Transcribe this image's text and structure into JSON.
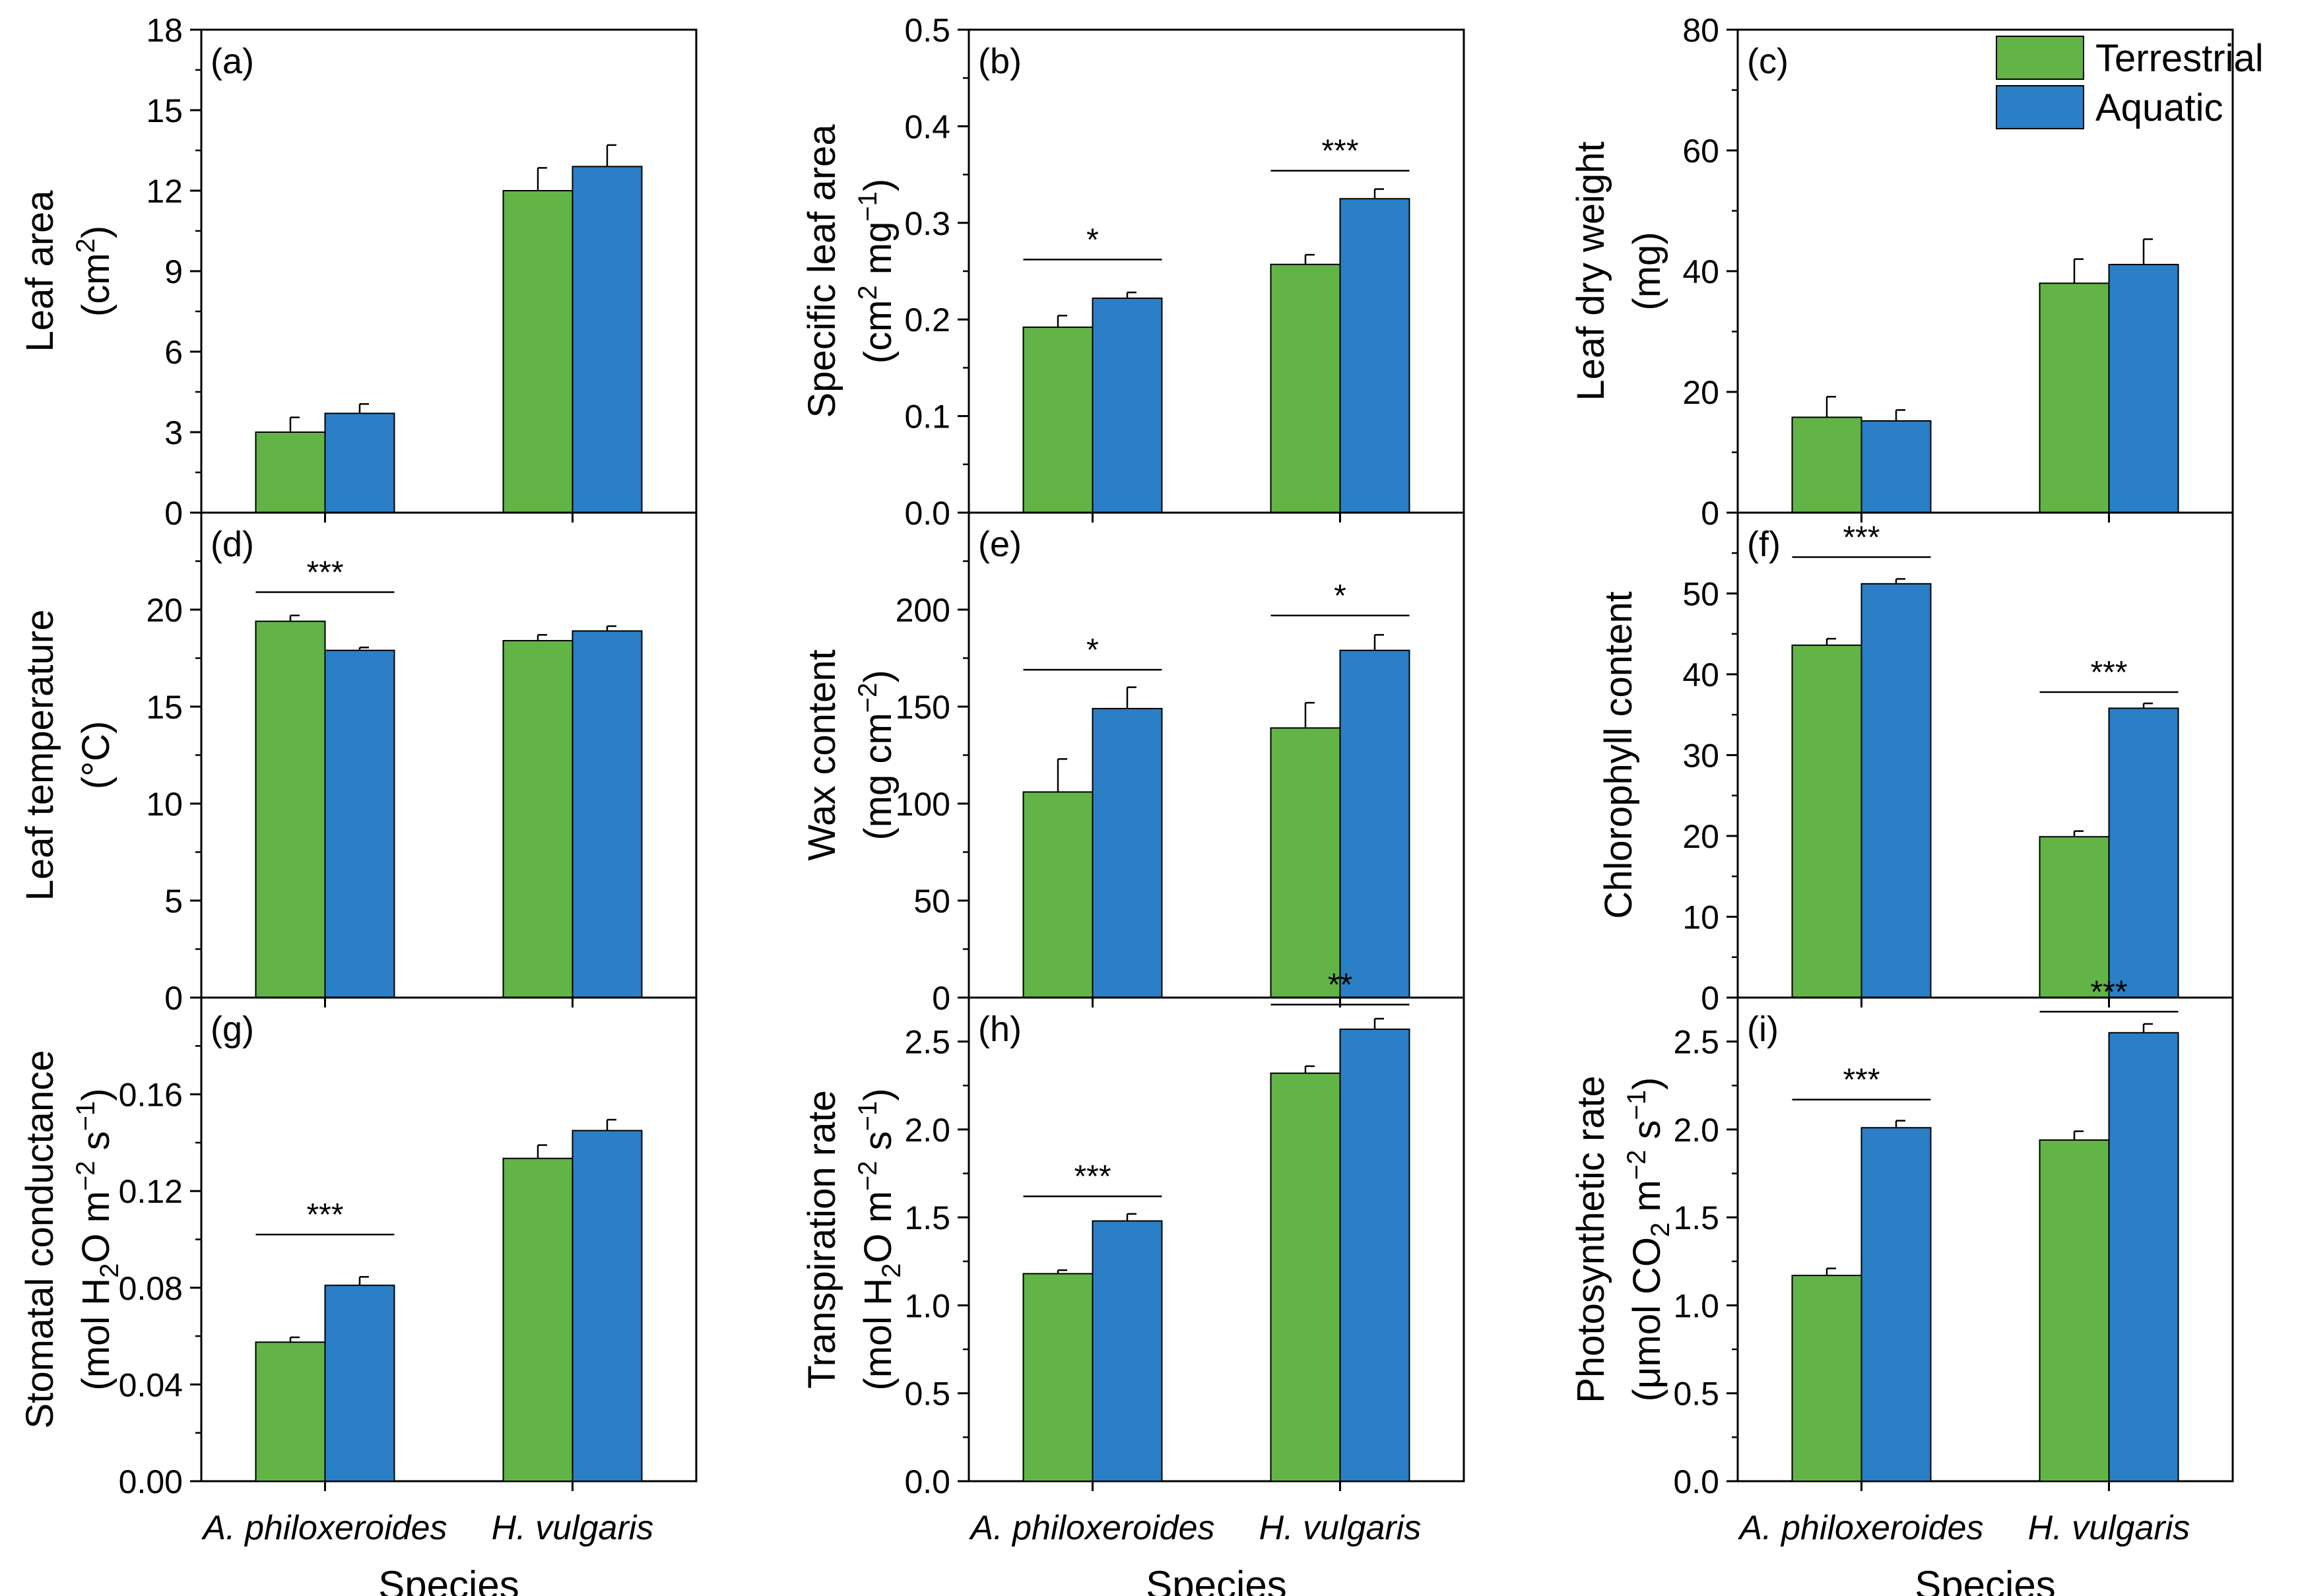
{
  "colors": {
    "terrestrial": "#62b446",
    "aquatic": "#2a7fc6"
  },
  "legend": {
    "terrestrial": "Terrestrial",
    "aquatic": "Aquatic"
  },
  "x_axis": {
    "categories": [
      "A. philoxeroides",
      "H. vulgaris"
    ],
    "label": "Species"
  },
  "chart_data": [
    {
      "id": "a",
      "type": "bar",
      "panel_label": "(a)",
      "ylabel": [
        "Leaf area",
        "(cm<sup>2</sup>)"
      ],
      "ylim": [
        0,
        18
      ],
      "ticks": [
        0,
        3,
        6,
        9,
        12,
        15,
        18
      ],
      "tick_labels": [
        "0",
        "3",
        "6",
        "9",
        "12",
        "15",
        "18"
      ],
      "minor_step": 1.5,
      "categories": [
        "A. philoxeroides",
        "H. vulgaris"
      ],
      "series": [
        {
          "name": "Terrestrial",
          "values": [
            3.0,
            12.0
          ],
          "errors": [
            0.55,
            0.85
          ]
        },
        {
          "name": "Aquatic",
          "values": [
            3.7,
            12.9
          ],
          "errors": [
            0.35,
            0.8
          ]
        }
      ],
      "significance": [
        null,
        null
      ]
    },
    {
      "id": "b",
      "type": "bar",
      "panel_label": "(b)",
      "ylabel": [
        "Specific leaf area",
        "(cm<sup>2</sup> mg<sup>−1</sup>)"
      ],
      "ylim": [
        0,
        0.5
      ],
      "ticks": [
        0,
        0.1,
        0.2,
        0.3,
        0.4,
        0.5
      ],
      "tick_labels": [
        "0.0",
        "0.1",
        "0.2",
        "0.3",
        "0.4",
        "0.5"
      ],
      "minor_step": 0.05,
      "categories": [
        "A. philoxeroides",
        "H. vulgaris"
      ],
      "series": [
        {
          "name": "Terrestrial",
          "values": [
            0.192,
            0.257
          ],
          "errors": [
            0.012,
            0.01
          ]
        },
        {
          "name": "Aquatic",
          "values": [
            0.222,
            0.325
          ],
          "errors": [
            0.006,
            0.01
          ]
        }
      ],
      "significance": [
        {
          "text": "*",
          "y": 0.262
        },
        {
          "text": "***",
          "y": 0.354
        }
      ]
    },
    {
      "id": "c",
      "type": "bar",
      "panel_label": "(c)",
      "ylabel": [
        "Leaf dry weight",
        "(mg)"
      ],
      "ylim": [
        0,
        80
      ],
      "ticks": [
        0,
        20,
        40,
        60,
        80
      ],
      "tick_labels": [
        "0",
        "20",
        "40",
        "60",
        "80"
      ],
      "minor_step": 10,
      "categories": [
        "A. philoxeroides",
        "H. vulgaris"
      ],
      "series": [
        {
          "name": "Terrestrial",
          "values": [
            15.8,
            38.0
          ],
          "errors": [
            3.4,
            4.0
          ]
        },
        {
          "name": "Aquatic",
          "values": [
            15.2,
            41.1
          ],
          "errors": [
            1.8,
            4.2
          ]
        }
      ],
      "significance": [
        null,
        null
      ],
      "legend": true
    },
    {
      "id": "d",
      "type": "bar",
      "panel_label": "(d)",
      "ylabel": [
        "Leaf temperature",
        "(°C)"
      ],
      "ylim": [
        0,
        25
      ],
      "ticks": [
        0,
        5,
        10,
        15,
        20
      ],
      "tick_labels": [
        "0",
        "5",
        "10",
        "15",
        "20"
      ],
      "minor_step": 2.5,
      "categories": [
        "A. philoxeroides",
        "H. vulgaris"
      ],
      "series": [
        {
          "name": "Terrestrial",
          "values": [
            19.4,
            18.4
          ],
          "errors": [
            0.3,
            0.3
          ]
        },
        {
          "name": "Aquatic",
          "values": [
            17.9,
            18.9
          ],
          "errors": [
            0.15,
            0.25
          ]
        }
      ],
      "significance": [
        {
          "text": "***",
          "y": 20.9
        },
        null
      ]
    },
    {
      "id": "e",
      "type": "bar",
      "panel_label": "(e)",
      "ylabel": [
        "Wax content",
        "(mg cm<sup>−2</sup>)"
      ],
      "ylim": [
        0,
        250
      ],
      "ticks": [
        0,
        50,
        100,
        150,
        200
      ],
      "tick_labels": [
        "0",
        "50",
        "100",
        "150",
        "200"
      ],
      "minor_step": 25,
      "categories": [
        "A. philoxeroides",
        "H. vulgaris"
      ],
      "series": [
        {
          "name": "Terrestrial",
          "values": [
            106,
            139
          ],
          "errors": [
            17,
            13
          ]
        },
        {
          "name": "Aquatic",
          "values": [
            149,
            179
          ],
          "errors": [
            11,
            8
          ]
        }
      ],
      "significance": [
        {
          "text": "*",
          "y": 169
        },
        {
          "text": "*",
          "y": 197
        }
      ]
    },
    {
      "id": "f",
      "type": "bar",
      "panel_label": "(f)",
      "ylabel": [
        "Chlorophyll content",
        ""
      ],
      "ylim": [
        0,
        60
      ],
      "ticks": [
        0,
        10,
        20,
        30,
        40,
        50
      ],
      "tick_labels": [
        "0",
        "10",
        "20",
        "30",
        "40",
        "50"
      ],
      "minor_step": 5,
      "categories": [
        "A. philoxeroides",
        "H. vulgaris"
      ],
      "series": [
        {
          "name": "Terrestrial",
          "values": [
            43.6,
            19.9
          ],
          "errors": [
            0.8,
            0.7
          ]
        },
        {
          "name": "Aquatic",
          "values": [
            51.2,
            35.8
          ],
          "errors": [
            0.6,
            0.6
          ]
        }
      ],
      "significance": [
        {
          "text": "***",
          "y": 54.5
        },
        {
          "text": "***",
          "y": 37.8
        }
      ]
    },
    {
      "id": "g",
      "type": "bar",
      "panel_label": "(g)",
      "ylabel": [
        "Stomatal conductance",
        "(mol H<sub>2</sub>O m<sup>−2</sup> s<sup>−1</sup>)"
      ],
      "ylim": [
        0,
        0.2
      ],
      "ticks": [
        0,
        0.04,
        0.08,
        0.12,
        0.16
      ],
      "tick_labels": [
        "0.00",
        "0.04",
        "0.08",
        "0.12",
        "0.16"
      ],
      "minor_step": 0.02,
      "categories": [
        "A. philoxeroides",
        "H. vulgaris"
      ],
      "series": [
        {
          "name": "Terrestrial",
          "values": [
            0.0575,
            0.1335
          ],
          "errors": [
            0.002,
            0.0055
          ]
        },
        {
          "name": "Aquatic",
          "values": [
            0.081,
            0.145
          ],
          "errors": [
            0.0035,
            0.0045
          ]
        }
      ],
      "significance": [
        {
          "text": "***",
          "y": 0.102
        },
        null
      ]
    },
    {
      "id": "h",
      "type": "bar",
      "panel_label": "(h)",
      "ylabel": [
        "Transpiration rate",
        "(mol H<sub>2</sub>O m<sup>−2</sup> s<sup>−1</sup>)"
      ],
      "ylim": [
        0,
        2.75
      ],
      "ticks": [
        0,
        0.5,
        1.0,
        1.5,
        2.0,
        2.5
      ],
      "tick_labels": [
        "0.0",
        "0.5",
        "1.0",
        "1.5",
        "2.0",
        "2.5"
      ],
      "minor_step": 0.25,
      "categories": [
        "A. philoxeroides",
        "H. vulgaris"
      ],
      "series": [
        {
          "name": "Terrestrial",
          "values": [
            1.18,
            2.32
          ],
          "errors": [
            0.02,
            0.04
          ]
        },
        {
          "name": "Aquatic",
          "values": [
            1.48,
            2.57
          ],
          "errors": [
            0.04,
            0.06
          ]
        }
      ],
      "significance": [
        {
          "text": "***",
          "y": 1.62
        },
        {
          "text": "**",
          "y": 2.71
        }
      ]
    },
    {
      "id": "i",
      "type": "bar",
      "panel_label": "(i)",
      "ylabel": [
        "Photosynthetic rate",
        "(μmol CO<sub>2</sub> m<sup>−2</sup> s<sup>−1</sup>)"
      ],
      "ylim": [
        0,
        2.75
      ],
      "ticks": [
        0,
        0.5,
        1.0,
        1.5,
        2.0,
        2.5
      ],
      "tick_labels": [
        "0.0",
        "0.5",
        "1.0",
        "1.5",
        "2.0",
        "2.5"
      ],
      "minor_step": 0.25,
      "categories": [
        "A. philoxeroides",
        "H. vulgaris"
      ],
      "series": [
        {
          "name": "Terrestrial",
          "values": [
            1.17,
            1.94
          ],
          "errors": [
            0.04,
            0.05
          ]
        },
        {
          "name": "Aquatic",
          "values": [
            2.01,
            2.55
          ],
          "errors": [
            0.04,
            0.05
          ]
        }
      ],
      "significance": [
        {
          "text": "***",
          "y": 2.17
        },
        {
          "text": "***",
          "y": 2.67
        }
      ]
    }
  ]
}
